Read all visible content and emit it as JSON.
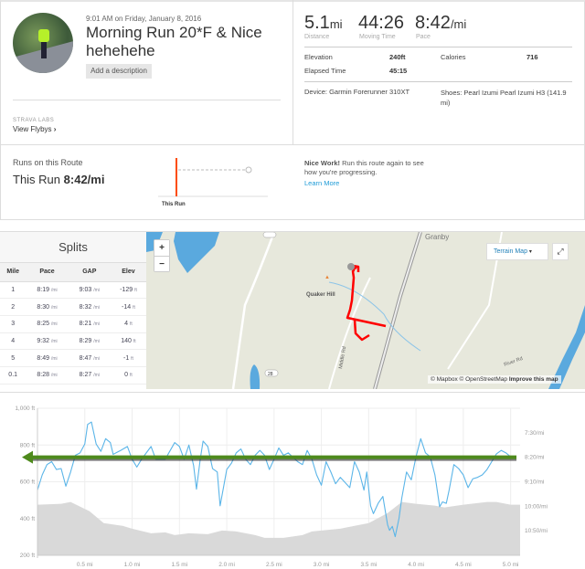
{
  "activity": {
    "datetime": "9:01 AM on Friday, January 8, 2016",
    "title": "Morning Run 20*F & Nice hehehehe",
    "add_description": "Add a description",
    "labs": "STRAVA LABS",
    "view_flybys": "View Flybys",
    "chevron": "›"
  },
  "stats": {
    "distance": {
      "value": "5.1",
      "unit": "mi",
      "label": "Distance"
    },
    "moving_time": {
      "value": "44:26",
      "label": "Moving Time"
    },
    "pace": {
      "value": "8:42",
      "unit": "/mi",
      "label": "Pace"
    },
    "elevation_label": "Elevation",
    "elevation": "240ft",
    "calories_label": "Calories",
    "calories": "716",
    "elapsed_label": "Elapsed Time",
    "elapsed": "45:15",
    "device": "Device: Garmin Forerunner 310XT",
    "shoes": "Shoes: Pearl Izumi Pearl Izumi H3 (141.9 mi)"
  },
  "route": {
    "heading": "Runs on this Route",
    "this_run_label": "This Run",
    "this_run_pace": "8:42/mi",
    "chart_label": "This Run",
    "nice_bold": "Nice Work!",
    "nice_text": " Run this route again to see how you're progressing.",
    "learn_more": "Learn More",
    "accent": "#fc4c02"
  },
  "splits": {
    "title": "Splits",
    "headers": [
      "Mile",
      "Pace",
      "GAP",
      "Elev"
    ],
    "rows": [
      {
        "mile": "1",
        "pace": "8:19",
        "gap": "9:03",
        "elev": "-129"
      },
      {
        "mile": "2",
        "pace": "8:30",
        "gap": "8:32",
        "elev": "-14"
      },
      {
        "mile": "3",
        "pace": "8:25",
        "gap": "8:21",
        "elev": "4"
      },
      {
        "mile": "4",
        "pace": "9:32",
        "gap": "8:29",
        "elev": "140"
      },
      {
        "mile": "5",
        "pace": "8:49",
        "gap": "8:47",
        "elev": "-1"
      },
      {
        "mile": "0.1",
        "pace": "8:28",
        "gap": "8:27",
        "elev": "0"
      }
    ],
    "pace_unit": "/mi",
    "elev_unit": "ft"
  },
  "map": {
    "zoom_in": "+",
    "zoom_out": "−",
    "layer": "Terrain Map",
    "labels": {
      "hill": "Quaker Hill",
      "road": "Middle Rd",
      "river_rd": "River Rd",
      "route_no": "28",
      "town": "Granby"
    },
    "attribution": "© Mapbox © OpenStreetMap",
    "improve": "Improve this map",
    "route_color": "#ff0000"
  },
  "chart_data": {
    "type": "area",
    "xlabel": "",
    "ylabel": "",
    "x_ticks": [
      "0.5 mi",
      "1.0 mi",
      "1.5 mi",
      "2.0 mi",
      "2.5 mi",
      "3.0 mi",
      "3.5 mi",
      "4.0 mi",
      "4.5 mi",
      "5.0 mi"
    ],
    "y_ticks_left": [
      "1,000 ft",
      "800 ft",
      "600 ft",
      "400 ft",
      "200 ft"
    ],
    "y_ticks_right": [
      "7:30/mi",
      "8:20/mi",
      "9:10/mi",
      "10:00/mi",
      "10:50/mi"
    ],
    "xlim": [
      0,
      5.1
    ],
    "ylim_left": [
      200,
      1000
    ],
    "ylim_right_pace": [
      "6:40",
      "11:40"
    ],
    "grid": true,
    "series": [
      {
        "type": "area",
        "color": "#d9d9d9",
        "unit": "ft",
        "x": [
          0,
          0.25,
          0.35,
          0.55,
          0.7,
          0.9,
          1.0,
          1.2,
          1.35,
          1.45,
          1.6,
          1.8,
          1.95,
          2.1,
          2.3,
          2.4,
          2.6,
          2.8,
          2.9,
          3.2,
          3.4,
          3.5,
          3.7,
          3.85,
          4.0,
          4.2,
          4.3,
          4.5,
          4.75,
          4.85,
          5.0,
          5.1
        ],
        "y": [
          475,
          480,
          490,
          440,
          375,
          360,
          345,
          320,
          325,
          310,
          320,
          315,
          335,
          330,
          310,
          295,
          295,
          310,
          330,
          345,
          365,
          375,
          430,
          490,
          480,
          470,
          460,
          475,
          490,
          490,
          475,
          475
        ]
      },
      {
        "type": "line",
        "color": "#5bb5e8",
        "unit": "pace /mi",
        "x": [
          0,
          0.05,
          0.1,
          0.15,
          0.2,
          0.25,
          0.3,
          0.35,
          0.4,
          0.45,
          0.5,
          0.53,
          0.57,
          0.62,
          0.67,
          0.72,
          0.77,
          0.8,
          0.88,
          0.95,
          1.0,
          1.05,
          1.1,
          1.2,
          1.25,
          1.35,
          1.45,
          1.5,
          1.55,
          1.6,
          1.65,
          1.68,
          1.72,
          1.75,
          1.8,
          1.85,
          1.9,
          1.93,
          1.97,
          2.0,
          2.05,
          2.1,
          2.15,
          2.2,
          2.25,
          2.3,
          2.35,
          2.4,
          2.45,
          2.5,
          2.55,
          2.6,
          2.65,
          2.75,
          2.8,
          2.85,
          2.9,
          2.95,
          3.0,
          3.05,
          3.1,
          3.15,
          3.2,
          3.3,
          3.35,
          3.4,
          3.45,
          3.48,
          3.52,
          3.55,
          3.6,
          3.65,
          3.7,
          3.72,
          3.75,
          3.78,
          3.82,
          3.85,
          3.9,
          3.95,
          4.0,
          4.05,
          4.1,
          4.15,
          4.2,
          4.25,
          4.28,
          4.32,
          4.35,
          4.4,
          4.45,
          4.5,
          4.55,
          4.6,
          4.65,
          4.7,
          4.75,
          4.8,
          4.85,
          4.9,
          4.95,
          5.0
        ],
        "y": [
          "9:27",
          "8:56",
          "8:35",
          "8:29",
          "8:45",
          "8:43",
          "9:19",
          "8:50",
          "8:16",
          "8:11",
          "7:53",
          "7:13",
          "7:08",
          "7:53",
          "8:08",
          "7:42",
          "7:50",
          "8:14",
          "8:06",
          "7:58",
          "8:24",
          "8:40",
          "8:24",
          "7:58",
          "8:24",
          "8:24",
          "7:50",
          "7:58",
          "8:24",
          "7:55",
          "8:37",
          "9:25",
          "8:24",
          "7:47",
          "7:58",
          "8:43",
          "8:50",
          "9:59",
          "9:17",
          "8:45",
          "8:32",
          "8:11",
          "8:03",
          "8:24",
          "8:35",
          "8:16",
          "8:06",
          "8:16",
          "8:45",
          "8:24",
          "8:01",
          "8:16",
          "8:11",
          "8:29",
          "8:35",
          "8:06",
          "8:24",
          "8:56",
          "9:17",
          "8:29",
          "8:50",
          "9:14",
          "9:01",
          "9:22",
          "8:29",
          "8:50",
          "9:27",
          "8:50",
          "9:59",
          "10:15",
          "9:54",
          "9:40",
          "10:38",
          "10:49",
          "10:41",
          "11:02",
          "10:25",
          "9:43",
          "8:50",
          "9:06",
          "8:19",
          "7:42",
          "8:11",
          "8:19",
          "8:56",
          "10:01",
          "9:51",
          "9:54",
          "9:27",
          "8:35",
          "8:43",
          "8:56",
          "9:22",
          "9:04",
          "9:01",
          "8:56",
          "8:45",
          "8:29",
          "8:13",
          "8:06",
          "8:11",
          "8:19"
        ]
      }
    ],
    "annotation": {
      "type": "arrow",
      "direction": "left",
      "color": "#4e8a1c",
      "level": "8:20"
    }
  }
}
